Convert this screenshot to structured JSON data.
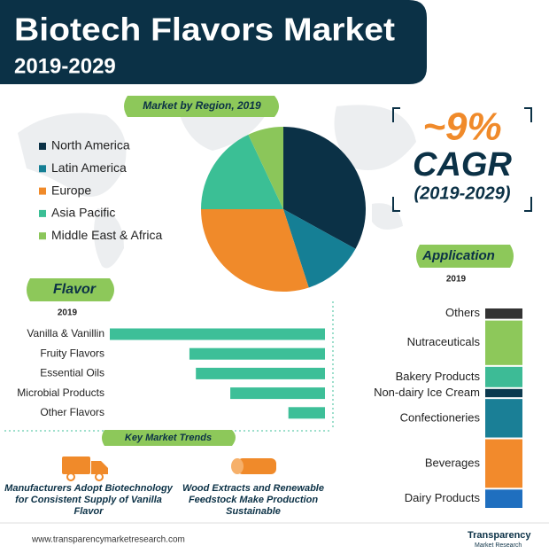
{
  "header": {
    "title": "Biotech Flavors Market",
    "subtitle": "2019-2029"
  },
  "cagr": {
    "value": "~9%",
    "label": "CAGR",
    "period": "(2019-2029)"
  },
  "chart_data": [
    {
      "type": "pie",
      "title": "Market by Region, 2019",
      "categories": [
        "North America",
        "Latin America",
        "Europe",
        "Asia Pacific",
        "Middle East & Africa"
      ],
      "values": [
        33,
        12,
        30,
        18,
        7
      ],
      "colors": [
        "#0b3146",
        "#157f95",
        "#f08a2a",
        "#3bbf95",
        "#8bc65a"
      ]
    },
    {
      "type": "hbar",
      "title": "Flavor",
      "subtitle": "2019",
      "categories": [
        "Vanilla & Vanillin",
        "Fruity Flavors",
        "Essential Oils",
        "Microbial Products",
        "Other Flavors"
      ],
      "values": [
        100,
        63,
        60,
        44,
        17
      ],
      "color": "#3dbf98"
    },
    {
      "type": "stacked-column",
      "title": "Application",
      "subtitle": "2019",
      "categories": [
        "Others",
        "Nutraceuticals",
        "Bakery Products",
        "Non-dairy Ice Cream",
        "Confectioneries",
        "Beverages",
        "Dairy Products"
      ],
      "values": [
        6,
        23,
        11,
        5,
        20,
        25,
        10
      ],
      "colors": [
        "#333333",
        "#8dc85a",
        "#3dbb96",
        "#0b3a4f",
        "#1a7f96",
        "#f28a2c",
        "#1f6fbf"
      ]
    }
  ],
  "trends": {
    "title": "Key Market Trends",
    "items": [
      "Manufacturers Adopt Biotechnology for Consistent Supply of Vanilla Flavor",
      "Wood Extracts and Renewable Feedstock Make Production Sustainable"
    ]
  },
  "footer": {
    "url": "www.transparencymarketresearch.com",
    "brand": "Transparency",
    "brand_sub": "Market Research"
  }
}
